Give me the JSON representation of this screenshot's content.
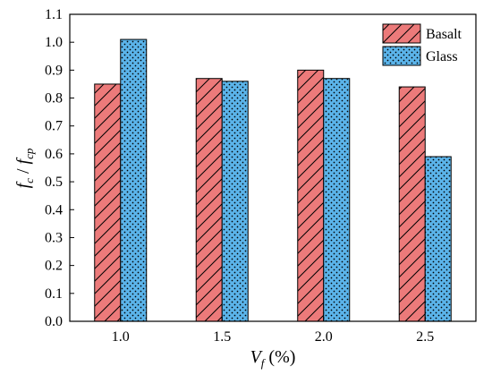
{
  "chart_data": {
    "type": "bar",
    "categories": [
      "1.0",
      "1.5",
      "2.0",
      "2.5"
    ],
    "series": [
      {
        "name": "Basalt",
        "values": [
          0.85,
          0.87,
          0.9,
          0.84
        ],
        "color": "#ec7a7a",
        "pattern": "diagonal-hatch"
      },
      {
        "name": "Glass",
        "values": [
          1.01,
          0.86,
          0.87,
          0.59
        ],
        "color": "#5bb4ea",
        "pattern": "dots"
      }
    ],
    "ylim": [
      0.0,
      1.1
    ],
    "yticks": [
      "0.0",
      "0.1",
      "0.2",
      "0.3",
      "0.4",
      "0.5",
      "0.6",
      "0.7",
      "0.8",
      "0.9",
      "1.0",
      "1.1"
    ],
    "xlabel": {
      "main": "V",
      "sub": "f",
      "rest": " (%)"
    },
    "ylabel": {
      "a": "f",
      "a_sub": "c",
      "sep": " / ",
      "b": "f",
      "b_sub": "cp"
    },
    "grid": false,
    "legend_position": "top-right"
  }
}
